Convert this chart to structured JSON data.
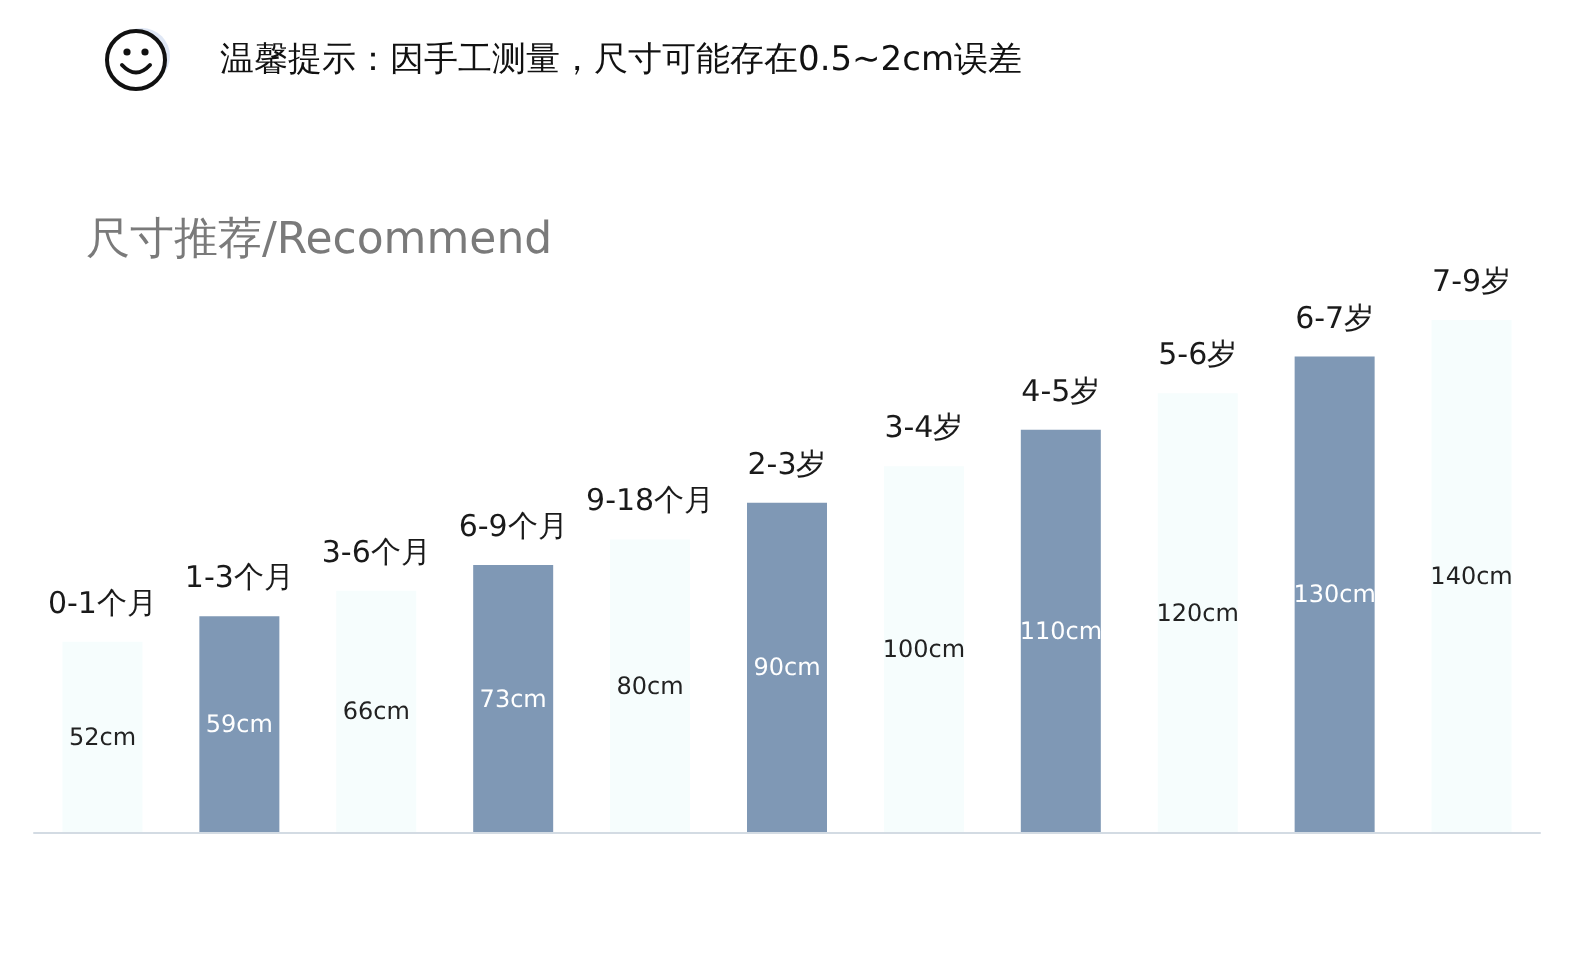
{
  "chart_data": {
    "type": "bar",
    "title": "尺寸推荐/Recommend",
    "annotations": [
      "温馨提示：因手工测量，尺寸可能存在0.5~2cm误差"
    ],
    "categories": [
      "0-1个月",
      "1-3个月",
      "3-6个月",
      "6-9个月",
      "9-18个月",
      "2-3岁",
      "3-4岁",
      "4-5岁",
      "5-6岁",
      "6-7岁",
      "7-9岁"
    ],
    "values": [
      52,
      59,
      66,
      73,
      80,
      90,
      100,
      110,
      120,
      130,
      140
    ],
    "value_labels": [
      "52cm",
      "59cm",
      "66cm",
      "73cm",
      "80cm",
      "90cm",
      "100cm",
      "110cm",
      "120cm",
      "130cm",
      "140cm"
    ],
    "colors": [
      "#f6fdfd",
      "#7f98b5",
      "#f6fdfd",
      "#7f98b5",
      "#f6fdfd",
      "#7f98b5",
      "#f6fdfd",
      "#7f98b5",
      "#f6fdfd",
      "#7f98b5",
      "#f6fdfd"
    ]
  }
}
